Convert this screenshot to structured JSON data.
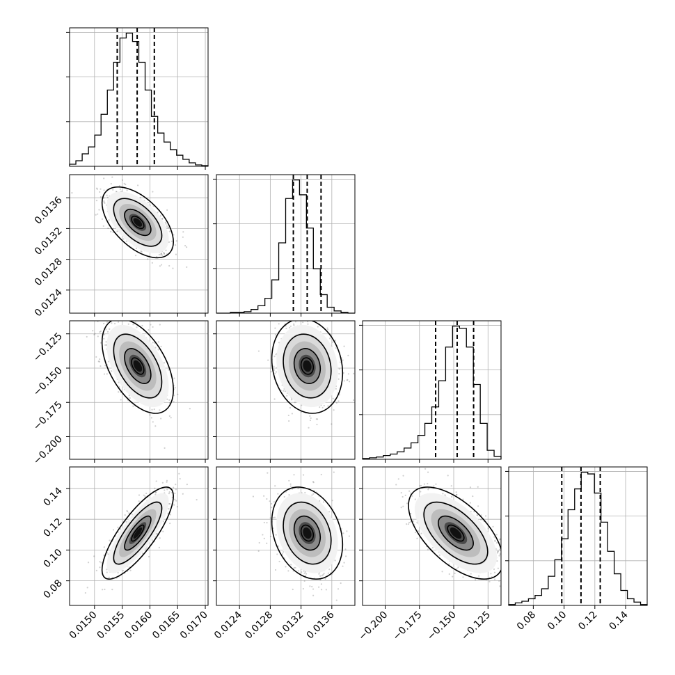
{
  "chart_data": {
    "type": "corner",
    "title": "",
    "params": [
      {
        "range": [
          0.01455,
          0.01705
        ],
        "ticks": [
          0.015,
          0.0155,
          0.016,
          0.0165,
          0.017
        ],
        "tick_labels": [
          "0.0150",
          "0.0155",
          "0.0160",
          "0.0165",
          "0.0170"
        ],
        "quantiles": [
          0.01541,
          0.01577,
          0.01608
        ]
      },
      {
        "range": [
          0.0121,
          0.0139
        ],
        "ticks": [
          0.0124,
          0.0128,
          0.0132,
          0.0136
        ],
        "tick_labels": [
          "0.0124",
          "0.0128",
          "0.0132",
          "0.0136"
        ],
        "quantiles": [
          0.0131,
          0.01328,
          0.01346
        ]
      },
      {
        "range": [
          -0.2165,
          -0.1155
        ],
        "ticks": [
          -0.2,
          -0.175,
          -0.15,
          -0.125
        ],
        "tick_labels": [
          "−0.200",
          "−0.175",
          "−0.150",
          "−0.125"
        ],
        "quantiles": [
          -0.1632,
          -0.1475,
          -0.1355
        ]
      },
      {
        "range": [
          0.064,
          0.154
        ],
        "ticks": [
          0.08,
          0.1,
          0.12,
          0.14
        ],
        "tick_labels": [
          "0.08",
          "0.10",
          "0.12",
          "0.14"
        ],
        "quantiles": [
          0.0985,
          0.111,
          0.1235
        ]
      }
    ],
    "histograms": [
      {
        "counts": [
          3,
          8,
          18,
          28,
          45,
          75,
          110,
          150,
          185,
          192,
          180,
          150,
          110,
          72,
          48,
          35,
          24,
          16,
          10,
          5,
          2,
          1
        ]
      },
      {
        "counts": [
          0,
          0,
          1,
          1,
          2,
          5,
          10,
          20,
          45,
          95,
          155,
          180,
          160,
          115,
          60,
          25,
          8,
          3,
          1,
          0
        ]
      },
      {
        "counts": [
          1,
          2,
          3,
          5,
          7,
          10,
          15,
          22,
          32,
          48,
          70,
          105,
          150,
          178,
          175,
          150,
          100,
          48,
          12,
          4
        ]
      },
      {
        "counts": [
          1,
          3,
          5,
          8,
          12,
          20,
          35,
          55,
          80,
          115,
          140,
          160,
          158,
          135,
          100,
          65,
          38,
          18,
          8,
          4,
          1
        ]
      }
    ],
    "joint": [
      {
        "x": 0,
        "y": 1,
        "mean": [
          0.01578,
          0.01328
        ],
        "sd": [
          0.00028,
          0.0002
        ],
        "rho": -0.55
      },
      {
        "x": 0,
        "y": 2,
        "mean": [
          0.01578,
          -0.1485
        ],
        "sd": [
          0.00028,
          0.015
        ],
        "rho": -0.5
      },
      {
        "x": 1,
        "y": 2,
        "mean": [
          0.01328,
          -0.1485
        ],
        "sd": [
          0.0002,
          0.015
        ],
        "rho": -0.15
      },
      {
        "x": 0,
        "y": 3,
        "mean": [
          0.01578,
          0.111
        ],
        "sd": [
          0.00028,
          0.013
        ],
        "rho": 0.8
      },
      {
        "x": 1,
        "y": 3,
        "mean": [
          0.01328,
          0.111
        ],
        "sd": [
          0.0002,
          0.013
        ],
        "rho": -0.25
      },
      {
        "x": 2,
        "y": 3,
        "mean": [
          -0.1485,
          0.111
        ],
        "sd": [
          0.015,
          0.013
        ],
        "rho": -0.6
      }
    ]
  }
}
